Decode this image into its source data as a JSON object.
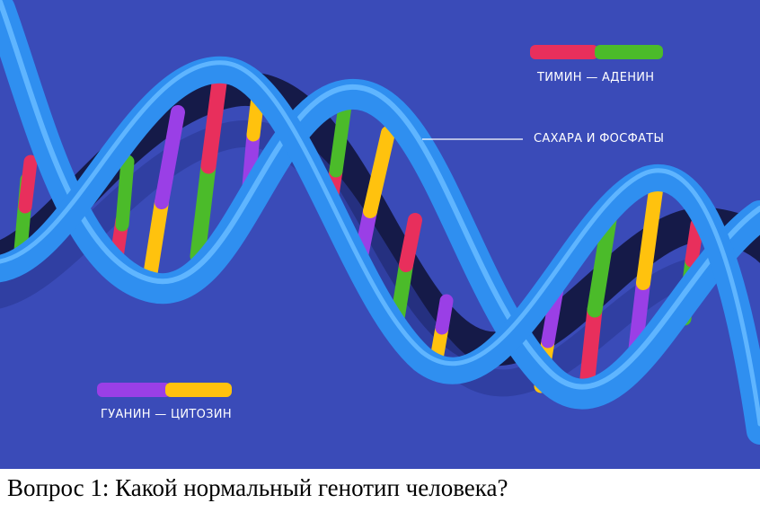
{
  "illustration": {
    "background": "#3a4bb8",
    "ribbon_color": "#2f8ff0",
    "ribbon_light": "#5fb5ff",
    "groove_color": "#151a48",
    "base_colors": {
      "red": "#e82f5c",
      "green": "#4bbb2a",
      "purple": "#9a3fe6",
      "yellow": "#ffc20e"
    }
  },
  "legend": {
    "thymine_adenine": "ТИМИН — АДЕНИН",
    "sugars_phosphates": "САХАРА И ФОСФАТЫ",
    "guanine_cytosine": "ГУАНИН — ЦИТОЗИН"
  },
  "question": "Вопрос 1: Какой нормальный генотип человека?"
}
